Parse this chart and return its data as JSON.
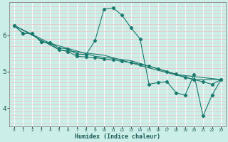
{
  "xlabel": "Humidex (Indice chaleur)",
  "bg_color": "#cceee8",
  "grid_color_vert": "#ffffff",
  "grid_color_horiz": "#f0c0c0",
  "line_color": "#1a7a6e",
  "xlim": [
    -0.5,
    23.5
  ],
  "ylim": [
    3.5,
    6.9
  ],
  "yticks": [
    4,
    5,
    6
  ],
  "xticks": [
    0,
    1,
    2,
    3,
    4,
    5,
    6,
    7,
    8,
    9,
    10,
    11,
    12,
    13,
    14,
    15,
    16,
    17,
    18,
    19,
    20,
    21,
    22,
    23
  ],
  "series1": [
    [
      0,
      6.27
    ],
    [
      1,
      6.05
    ],
    [
      2,
      6.05
    ],
    [
      3,
      5.82
    ],
    [
      4,
      5.8
    ],
    [
      5,
      5.65
    ],
    [
      6,
      5.62
    ],
    [
      7,
      5.48
    ],
    [
      8,
      5.47
    ],
    [
      9,
      5.85
    ],
    [
      10,
      6.72
    ],
    [
      11,
      6.75
    ],
    [
      12,
      6.55
    ],
    [
      13,
      6.2
    ],
    [
      14,
      5.9
    ],
    [
      15,
      4.65
    ],
    [
      16,
      4.7
    ],
    [
      17,
      4.72
    ],
    [
      18,
      4.42
    ],
    [
      19,
      4.35
    ],
    [
      20,
      4.92
    ],
    [
      21,
      3.78
    ],
    [
      22,
      4.35
    ],
    [
      23,
      4.78
    ]
  ],
  "series2": [
    [
      0,
      6.27
    ],
    [
      1,
      6.05
    ],
    [
      2,
      6.05
    ],
    [
      3,
      5.82
    ],
    [
      4,
      5.78
    ],
    [
      5,
      5.6
    ],
    [
      6,
      5.55
    ],
    [
      7,
      5.42
    ],
    [
      8,
      5.4
    ],
    [
      9,
      5.38
    ],
    [
      10,
      5.35
    ],
    [
      11,
      5.32
    ],
    [
      12,
      5.28
    ],
    [
      13,
      5.25
    ],
    [
      14,
      5.2
    ],
    [
      15,
      5.15
    ],
    [
      16,
      5.08
    ],
    [
      17,
      5.0
    ],
    [
      18,
      4.93
    ],
    [
      19,
      4.85
    ],
    [
      20,
      4.78
    ],
    [
      21,
      4.72
    ],
    [
      22,
      4.65
    ],
    [
      23,
      4.78
    ]
  ],
  "series3": [
    [
      0,
      6.27
    ],
    [
      4,
      5.78
    ],
    [
      9,
      5.42
    ],
    [
      13,
      5.3
    ],
    [
      18,
      4.92
    ],
    [
      23,
      4.78
    ]
  ],
  "series4": [
    [
      0,
      6.27
    ],
    [
      5,
      5.6
    ],
    [
      10,
      5.45
    ],
    [
      15,
      5.1
    ],
    [
      20,
      4.78
    ],
    [
      23,
      4.78
    ]
  ]
}
